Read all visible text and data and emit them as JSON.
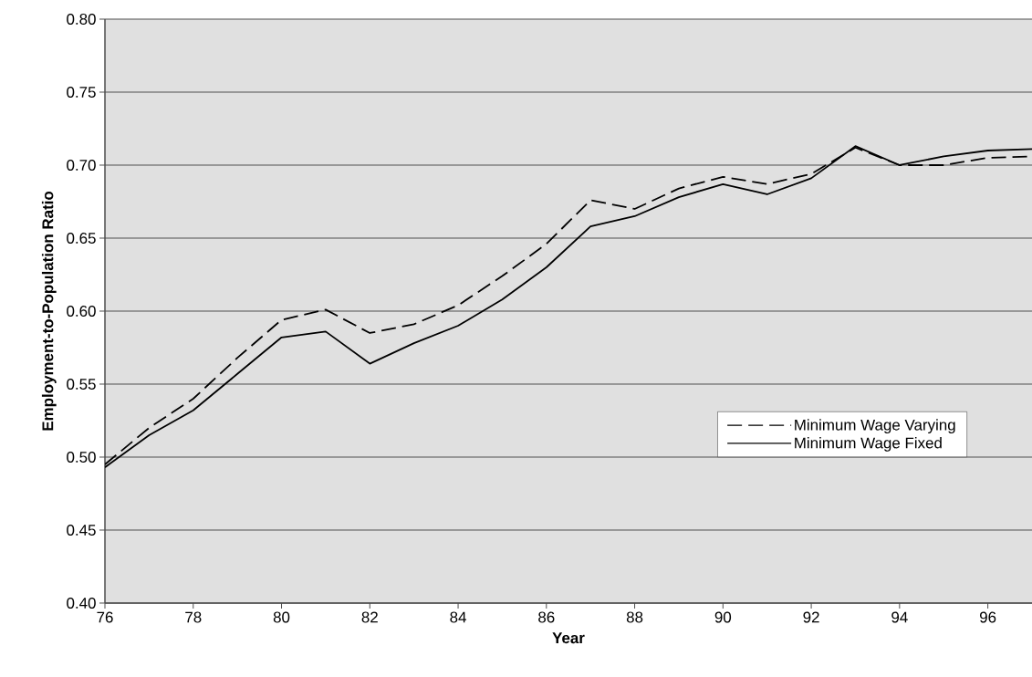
{
  "chart_data": {
    "type": "line",
    "xlabel": "Year",
    "ylabel": "Employment-to-Population Ratio",
    "x": [
      76,
      77,
      78,
      79,
      80,
      81,
      82,
      83,
      84,
      85,
      86,
      87,
      88,
      89,
      90,
      91,
      92,
      93,
      94,
      95,
      96,
      97
    ],
    "series": [
      {
        "name": "Minimum Wage Varying",
        "color": "#000000",
        "line_style": "dashed",
        "values": [
          0.495,
          0.52,
          0.54,
          0.568,
          0.594,
          0.601,
          0.585,
          0.591,
          0.604,
          0.624,
          0.646,
          0.676,
          0.67,
          0.684,
          0.692,
          0.687,
          0.694,
          0.712,
          0.7,
          0.7,
          0.705,
          0.706
        ]
      },
      {
        "name": "Minimum Wage Fixed",
        "color": "#000000",
        "line_style": "solid",
        "values": [
          0.493,
          0.515,
          0.532,
          0.557,
          0.582,
          0.586,
          0.564,
          0.578,
          0.59,
          0.608,
          0.63,
          0.658,
          0.665,
          0.678,
          0.687,
          0.68,
          0.691,
          0.713,
          0.7,
          0.706,
          0.71,
          0.711
        ]
      }
    ],
    "xlim": [
      76,
      97
    ],
    "xticks": [
      76,
      78,
      80,
      82,
      84,
      86,
      88,
      90,
      92,
      94,
      96
    ],
    "ylim": [
      0.4,
      0.8
    ],
    "yticks": [
      {
        "value": 0.4,
        "label": "0.40"
      },
      {
        "value": 0.45,
        "label": "0.45"
      },
      {
        "value": 0.5,
        "label": "0.50"
      },
      {
        "value": 0.55,
        "label": "0.55"
      },
      {
        "value": 0.6,
        "label": "0.60"
      },
      {
        "value": 0.65,
        "label": "0.65"
      },
      {
        "value": 0.7,
        "label": "0.70"
      },
      {
        "value": 0.75,
        "label": "0.75"
      },
      {
        "value": 0.8,
        "label": "0.80"
      }
    ],
    "grid": "y",
    "legend": "bottom right",
    "marker": "none"
  }
}
